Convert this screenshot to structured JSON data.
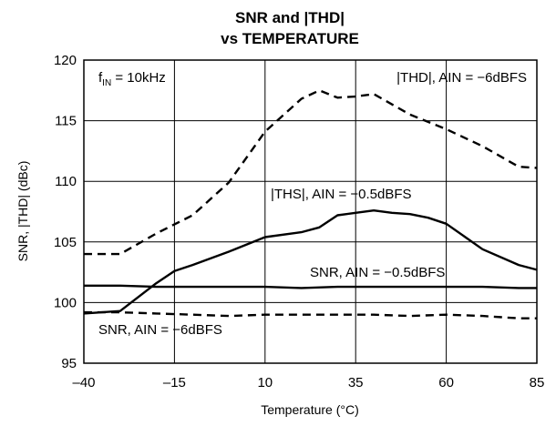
{
  "chart_data": {
    "type": "line",
    "title": [
      "SNR and |THD|",
      "vs TEMPERATURE"
    ],
    "xlabel": "Temperature (°C)",
    "ylabel": "SNR, |THD| (dBc)",
    "xlim": [
      -40,
      85
    ],
    "ylim": [
      95,
      120
    ],
    "xticks": [
      -40,
      -15,
      10,
      35,
      60,
      85
    ],
    "yticks": [
      95,
      100,
      105,
      110,
      115,
      120
    ],
    "grid": true,
    "note": {
      "main": "f",
      "subscript": "IN",
      "rest": " = 10kHz"
    },
    "series": [
      {
        "name": "|THD|, AIN = −6dBFS",
        "style": "dashed",
        "x": [
          -40,
          -30,
          -20,
          -10,
          0,
          10,
          20,
          25,
          30,
          35,
          40,
          50,
          60,
          70,
          80,
          85
        ],
        "y": [
          104.0,
          104.0,
          105.7,
          107.2,
          109.9,
          114.1,
          116.8,
          117.5,
          116.9,
          117.0,
          117.2,
          115.5,
          114.3,
          112.9,
          111.2,
          111.1
        ]
      },
      {
        "name": "|THS|, AIN = −0.5dBFS",
        "style": "solid",
        "x": [
          -40,
          -30,
          -20,
          -15,
          -10,
          0,
          10,
          20,
          25,
          30,
          35,
          40,
          45,
          50,
          55,
          60,
          70,
          80,
          85
        ],
        "y": [
          99.1,
          99.3,
          101.6,
          102.6,
          103.1,
          104.2,
          105.4,
          105.8,
          106.2,
          107.2,
          107.4,
          107.6,
          107.4,
          107.3,
          107.0,
          106.5,
          104.4,
          103.1,
          102.7
        ]
      },
      {
        "name": "SNR, AIN = −0.5dBFS",
        "style": "solid",
        "x": [
          -40,
          -30,
          -20,
          -10,
          0,
          10,
          20,
          30,
          40,
          50,
          60,
          70,
          80,
          85
        ],
        "y": [
          101.4,
          101.4,
          101.3,
          101.3,
          101.3,
          101.3,
          101.2,
          101.3,
          101.3,
          101.3,
          101.3,
          101.3,
          101.2,
          101.2
        ]
      },
      {
        "name": "SNR, AIN = −6dBFS",
        "style": "dashed",
        "x": [
          -40,
          -30,
          -20,
          -10,
          0,
          10,
          20,
          30,
          40,
          50,
          60,
          70,
          80,
          85
        ],
        "y": [
          99.2,
          99.2,
          99.1,
          99.0,
          98.9,
          99.0,
          99.0,
          99.0,
          99.0,
          98.9,
          99.0,
          98.9,
          98.7,
          98.7
        ]
      }
    ]
  }
}
